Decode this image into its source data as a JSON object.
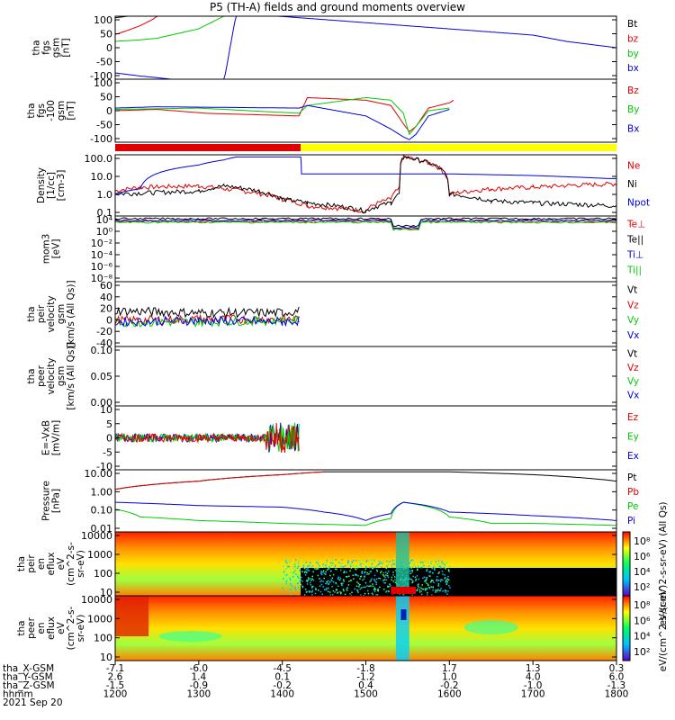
{
  "title": "P5 (TH-A) fields and ground moments overview",
  "date_label": "2021 Sep 20",
  "colors": {
    "black": "#000000",
    "red": "#e00000",
    "green": "#00cc00",
    "blue": "#0000e0",
    "yellow": "#ffff00"
  },
  "chart_data": [
    {
      "type": "line",
      "panel": "fgs",
      "ylabel": [
        "tha",
        "fgs",
        "gsm",
        "[nT]"
      ],
      "yticks": [
        "100",
        "50",
        "0",
        "-50",
        "-100"
      ],
      "ylim": [
        -100,
        100
      ],
      "legend": [
        {
          "name": "Bt",
          "color": "black"
        },
        {
          "name": "bz",
          "color": "red"
        },
        {
          "name": "by",
          "color": "green"
        },
        {
          "name": "bx",
          "color": "blue"
        }
      ],
      "series": [
        {
          "name": "Bt",
          "x": [
            1200,
            1215,
            1230,
            1240
          ],
          "y": [
            95,
            100,
            110,
            110
          ]
        },
        {
          "name": "bz",
          "x": [
            1200,
            1215,
            1230,
            1245,
            1255
          ],
          "y": [
            42,
            55,
            70,
            90,
            110
          ]
        },
        {
          "name": "by",
          "x": [
            1200,
            1230,
            1250,
            1300,
            1330,
            1345,
            1410,
            1420,
            1450,
            1500,
            1600,
            1700,
            1800
          ],
          "y": [
            20,
            25,
            30,
            60,
            100,
            120,
            110,
            100,
            110,
            110,
            110,
            110,
            110
          ]
        },
        {
          "name": "bx",
          "x": [
            1200,
            1215,
            1230,
            1250,
            1300,
            1330,
            1345,
            1700,
            1740,
            1800
          ],
          "y": [
            -80,
            -85,
            -90,
            -95,
            -110,
            -110,
            110,
            40,
            20,
            0
          ]
        }
      ]
    },
    {
      "type": "line",
      "panel": "fgs-ctr",
      "ylabel": [
        "tha",
        "fgs",
        "-100",
        "gsm",
        "[nT]"
      ],
      "yticks": [
        "100",
        "50",
        "0",
        "-50",
        "-100"
      ],
      "ylim": [
        -120,
        120
      ],
      "legend": [
        {
          "name": "Bz",
          "color": "red"
        },
        {
          "name": "By",
          "color": "green"
        },
        {
          "name": "Bx",
          "color": "blue"
        }
      ],
      "series": [
        {
          "name": "Bz",
          "x": [
            1200,
            1250,
            1310,
            1420,
            1430,
            1500,
            1530,
            1545,
            1552,
            1560,
            1575,
            1600,
            1605
          ],
          "y": [
            0,
            5,
            -10,
            -20,
            50,
            40,
            20,
            -50,
            -80,
            -60,
            10,
            30,
            40
          ]
        },
        {
          "name": "By",
          "x": [
            1200,
            1300,
            1420,
            1430,
            1500,
            1530,
            1545,
            1552,
            1560,
            1575,
            1600
          ],
          "y": [
            5,
            10,
            -10,
            20,
            50,
            40,
            -10,
            -90,
            -60,
            0,
            10
          ]
        },
        {
          "name": "Bx",
          "x": [
            1200,
            1250,
            1420,
            1430,
            1500,
            1530,
            1545,
            1552,
            1560,
            1575,
            1600
          ],
          "y": [
            10,
            15,
            10,
            20,
            -20,
            -70,
            -100,
            -110,
            -90,
            -20,
            5
          ]
        }
      ]
    },
    {
      "type": "bar",
      "panel": "mode-bar",
      "segments": [
        {
          "from": 1200,
          "to": 1422,
          "color": "red"
        },
        {
          "from": 1422,
          "to": 1800,
          "color": "yellow"
        }
      ]
    },
    {
      "type": "line",
      "panel": "density",
      "ylabel": [
        "Density",
        "[1/cc]",
        "[cm-3]"
      ],
      "yticks": [
        "100.0",
        "10.0",
        "1.0",
        "0.1"
      ],
      "scale": "log",
      "ylim": [
        0.05,
        200
      ],
      "legend": [
        {
          "name": "Ne",
          "color": "red"
        },
        {
          "name": "Ni",
          "color": "black"
        },
        {
          "name": "Npot",
          "color": "blue"
        }
      ],
      "series": [
        {
          "name": "Ne",
          "x": [
            1200,
            1230,
            1300,
            1330,
            1400,
            1430,
            1500,
            1530,
            1540,
            1545,
            1600,
            1650,
            1700,
            1800
          ],
          "y": [
            1.5,
            2.5,
            3,
            2,
            0.5,
            0.2,
            0.1,
            0.5,
            2,
            150,
            1,
            2,
            2.5,
            4
          ]
        },
        {
          "name": "Ni",
          "x": [
            1200,
            1300,
            1330,
            1400,
            1430,
            1500,
            1530,
            1540,
            1545,
            1600,
            1650,
            1700,
            1800
          ],
          "y": [
            1,
            1.5,
            3,
            0.5,
            0.3,
            0.1,
            0.3,
            1,
            150,
            1,
            0.4,
            0.3,
            0.2
          ]
        },
        {
          "name": "Npot",
          "x": [
            1200,
            1230,
            1300,
            1330,
            1345,
            1422,
            1423,
            1600,
            1700,
            1790,
            1800
          ],
          "y": [
            1,
            2,
            50,
            100,
            150,
            150,
            15,
            15,
            12,
            8,
            8
          ]
        }
      ]
    },
    {
      "type": "line",
      "panel": "temp",
      "ylabel": [
        "mom3",
        "[eV]"
      ],
      "yticks": [
        "10⁴",
        "10⁰",
        "10⁻²",
        "10⁻⁴",
        "10⁻⁶",
        "10⁻⁸"
      ],
      "legend": [
        {
          "name": "Te⊥",
          "color": "red"
        },
        {
          "name": "Te||",
          "color": "black"
        },
        {
          "name": "Ti⊥",
          "color": "blue"
        },
        {
          "name": "Ti||",
          "color": "green"
        }
      ]
    },
    {
      "type": "line",
      "panel": "peir-vel",
      "ylabel": [
        "tha",
        "peir",
        "velocity",
        "gsm",
        "[km/s (All Qs)]"
      ],
      "yticks": [
        "60",
        "40",
        "20",
        "0",
        "-20",
        "-40"
      ],
      "ylim": [
        -40,
        60
      ],
      "legend": [
        {
          "name": "Vt",
          "color": "black"
        },
        {
          "name": "Vz",
          "color": "red"
        },
        {
          "name": "Vy",
          "color": "green"
        },
        {
          "name": "Vx",
          "color": "blue"
        }
      ],
      "series": [
        {
          "name": "Vt",
          "x": [
            1200,
            1300,
            1400,
            1420
          ],
          "y": [
            15,
            12,
            12,
            15
          ]
        },
        {
          "name": "Vz",
          "x": [
            1200,
            1300,
            1400,
            1420
          ],
          "y": [
            0,
            2,
            2,
            3
          ]
        },
        {
          "name": "Vy",
          "x": [
            1200,
            1300,
            1400,
            1420
          ],
          "y": [
            -3,
            -2,
            0,
            0
          ]
        },
        {
          "name": "Vx",
          "x": [
            1200,
            1300,
            1400,
            1420
          ],
          "y": [
            -2,
            0,
            -2,
            0
          ]
        }
      ]
    },
    {
      "type": "line",
      "panel": "peer-vel",
      "ylabel": [
        "tha",
        "peer",
        "velocity",
        "gsm",
        "[km/s (All Qs)]"
      ],
      "yticks": [
        "0.10",
        "0.05",
        "0.00"
      ],
      "legend": [
        {
          "name": "Vt",
          "color": "black"
        },
        {
          "name": "Vz",
          "color": "red"
        },
        {
          "name": "Vy",
          "color": "green"
        },
        {
          "name": "Vx",
          "color": "blue"
        }
      ]
    },
    {
      "type": "line",
      "panel": "efield",
      "ylabel": [
        "E=-VxB",
        "[mV/m]"
      ],
      "yticks": [
        "10",
        "5",
        "0",
        "-5",
        "-10"
      ],
      "ylim": [
        -12,
        12
      ],
      "legend": [
        {
          "name": "Ez",
          "color": "red"
        },
        {
          "name": "Ey",
          "color": "green"
        },
        {
          "name": "Ex",
          "color": "blue"
        }
      ]
    },
    {
      "type": "line",
      "panel": "pressure",
      "ylabel": [
        "Pressure",
        "[nPa]"
      ],
      "yticks": [
        "10.00",
        "1.00",
        "0.10",
        "0.01"
      ],
      "scale": "log",
      "ylim": [
        0.006,
        40
      ],
      "legend": [
        {
          "name": "Pt",
          "color": "black"
        },
        {
          "name": "Pb",
          "color": "red"
        },
        {
          "name": "Pe",
          "color": "green"
        },
        {
          "name": "Pi",
          "color": "blue"
        }
      ],
      "series": [
        {
          "name": "Pt",
          "x": [
            1200,
            1300,
            1400,
            1450,
            1500,
            1600,
            1700,
            1800
          ],
          "y": [
            2.5,
            8,
            20,
            30,
            30,
            30,
            20,
            8
          ]
        },
        {
          "name": "Pb",
          "x": [
            1200,
            1300,
            1400,
            1450
          ],
          "y": [
            2.5,
            8,
            20,
            30
          ]
        },
        {
          "name": "Pe",
          "x": [
            1200,
            1230,
            1300,
            1400,
            1500,
            1530,
            1545,
            1600,
            1650,
            1700,
            1800
          ],
          "y": [
            0.15,
            0.05,
            0.03,
            0.02,
            0.015,
            0.04,
            0.4,
            0.05,
            0.02,
            0.02,
            0.015
          ]
        },
        {
          "name": "Pi",
          "x": [
            1200,
            1300,
            1400,
            1450,
            1500,
            1530,
            1545,
            1600,
            1700,
            1800
          ],
          "y": [
            0.4,
            0.25,
            0.2,
            0.1,
            0.03,
            0.08,
            0.4,
            0.1,
            0.06,
            0.03
          ]
        }
      ]
    },
    {
      "type": "heatmap",
      "panel": "peir-spec",
      "ylabel": [
        "tha",
        "peir",
        "en",
        "eflux",
        "eV",
        "(cm^2-s-",
        "sr-eV)"
      ],
      "yticks": [
        "10000",
        "1000",
        "100",
        "10"
      ],
      "colorbar_label": "eV/(cm^2-s-sr-eV) (All Qs)",
      "colorbar_ticks": [
        "10⁸",
        "10⁶",
        "10⁴",
        "10²"
      ]
    },
    {
      "type": "heatmap",
      "panel": "peer-spec",
      "ylabel": [
        "tha",
        "peer",
        "en",
        "eflux",
        "eV",
        "(cm^2-s-",
        "sr-eV)"
      ],
      "yticks": [
        "10000",
        "1000",
        "100",
        "10"
      ],
      "colorbar_label": "eV/(cm^2-s-sr-eV)",
      "colorbar_ticks": [
        "10⁸",
        "10⁶",
        "10⁴",
        "10²"
      ]
    }
  ],
  "ephemeris": {
    "rows": [
      {
        "label": "tha_X-GSM",
        "values": [
          "-7.1",
          "-6.0",
          "-4.5",
          "-1.8",
          "1.7",
          "1.3",
          "0.3"
        ]
      },
      {
        "label": "tha_Y-GSM",
        "values": [
          "2.6",
          "1.4",
          "0.1",
          "-1.2",
          "1.0",
          "4.0",
          "6.0"
        ]
      },
      {
        "label": "tha_Z-GSM",
        "values": [
          "-1.5",
          "-0.9",
          "-0.2",
          "0.4",
          "-0.2",
          "-1.0",
          "-1.3"
        ]
      },
      {
        "label": "hhmm",
        "values": [
          "1200",
          "1300",
          "1400",
          "1500",
          "1600",
          "1700",
          "1800"
        ]
      }
    ]
  }
}
